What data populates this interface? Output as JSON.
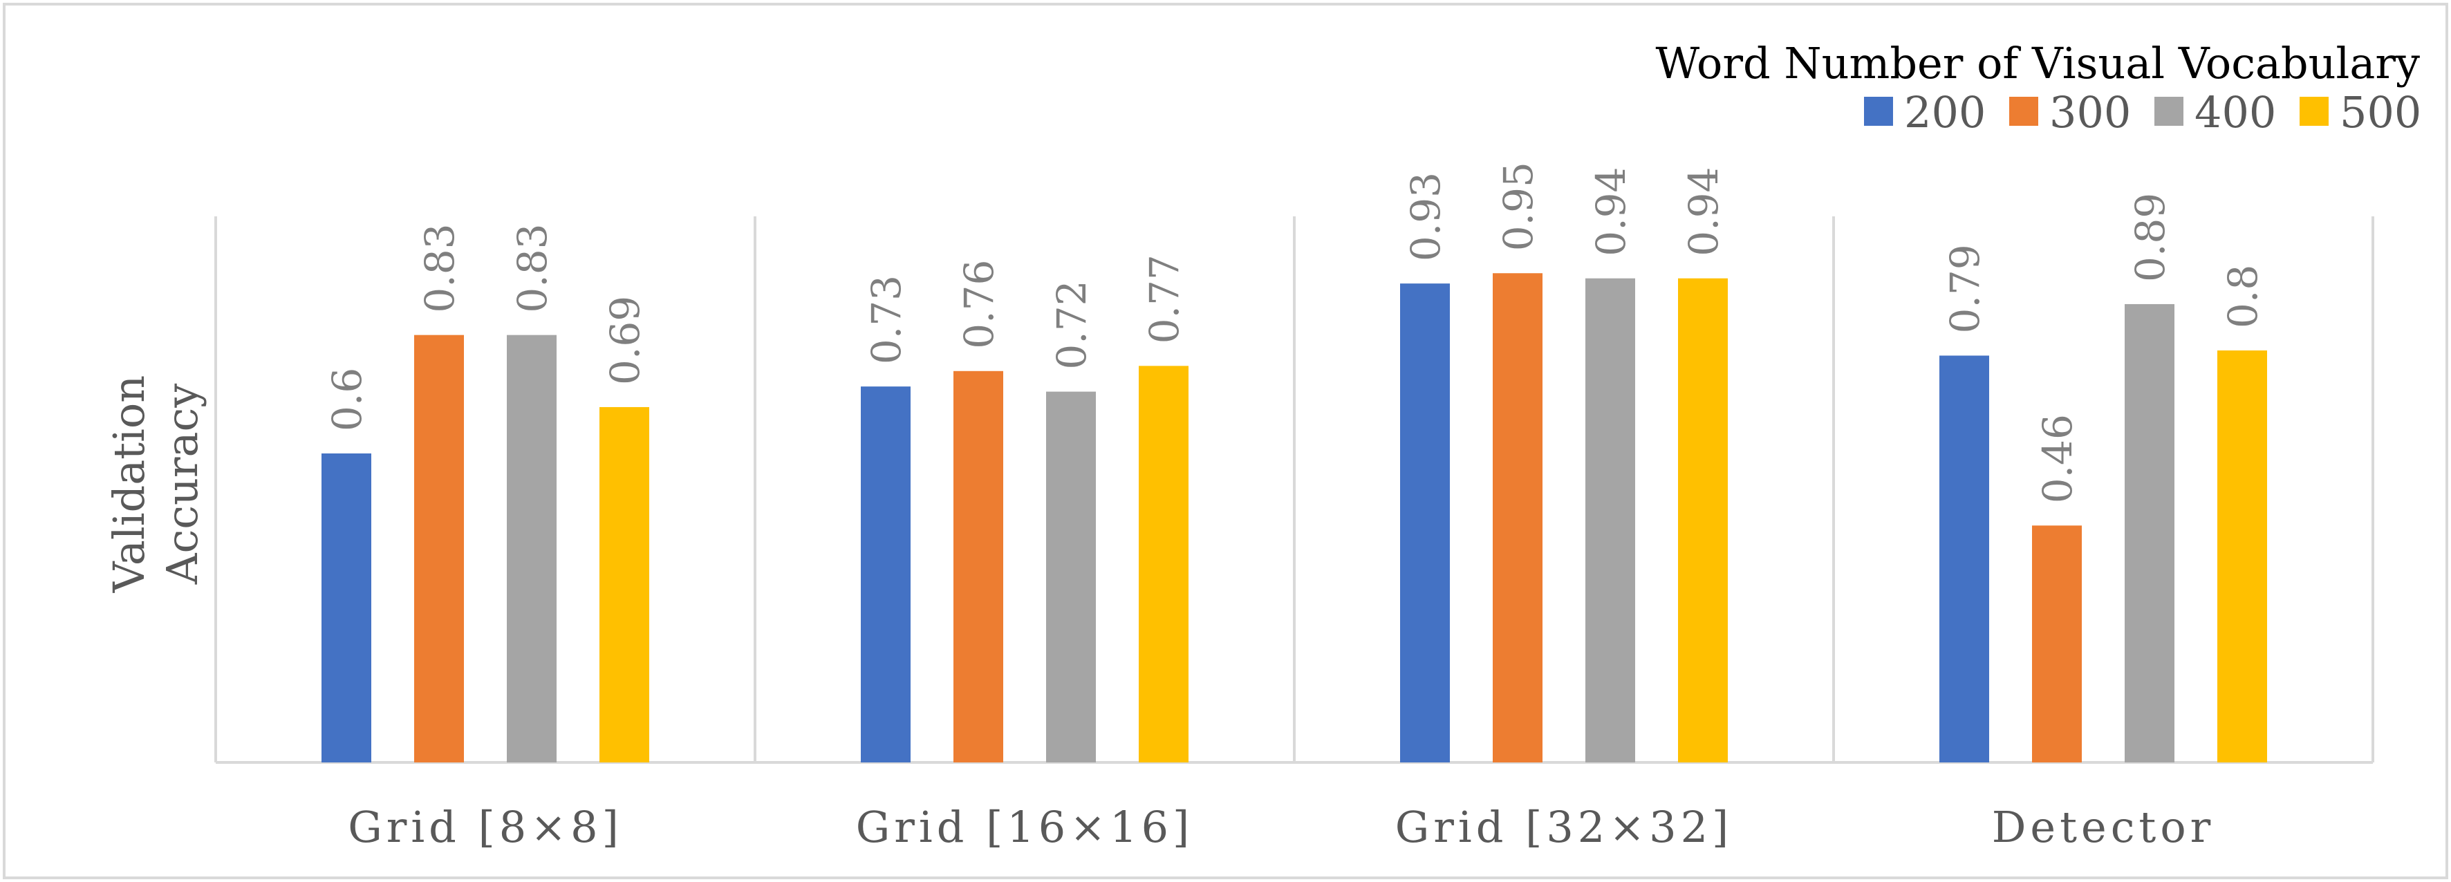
{
  "chart_data": {
    "type": "bar",
    "legend_title": "Word Number of Visual Vocabulary",
    "legend_position": "top-right",
    "ylabel": [
      "Validation",
      "Accuracy"
    ],
    "categories": [
      "Grid [8×8]",
      "Grid [16×16]",
      "Grid [32×32]",
      "Detector"
    ],
    "series": [
      {
        "name": "200",
        "color": "#4472C4",
        "values": [
          0.6,
          0.73,
          0.93,
          0.79
        ],
        "labels": [
          "0.6",
          "0.73",
          "0.93",
          "0.79"
        ]
      },
      {
        "name": "300",
        "color": "#ED7D31",
        "values": [
          0.83,
          0.76,
          0.95,
          0.46
        ],
        "labels": [
          "0.83",
          "0.76",
          "0.95",
          "0.46"
        ]
      },
      {
        "name": "400",
        "color": "#A5A5A5",
        "values": [
          0.83,
          0.72,
          0.94,
          0.89
        ],
        "labels": [
          "0.83",
          "0.72",
          "0.94",
          "0.89"
        ]
      },
      {
        "name": "500",
        "color": "#FFC000",
        "values": [
          0.69,
          0.77,
          0.94,
          0.8
        ],
        "labels": [
          "0.69",
          "0.77",
          "0.94",
          "0.8"
        ]
      }
    ],
    "ylim": [
      0,
      1.0
    ],
    "grid": false,
    "category_separators": true
  }
}
